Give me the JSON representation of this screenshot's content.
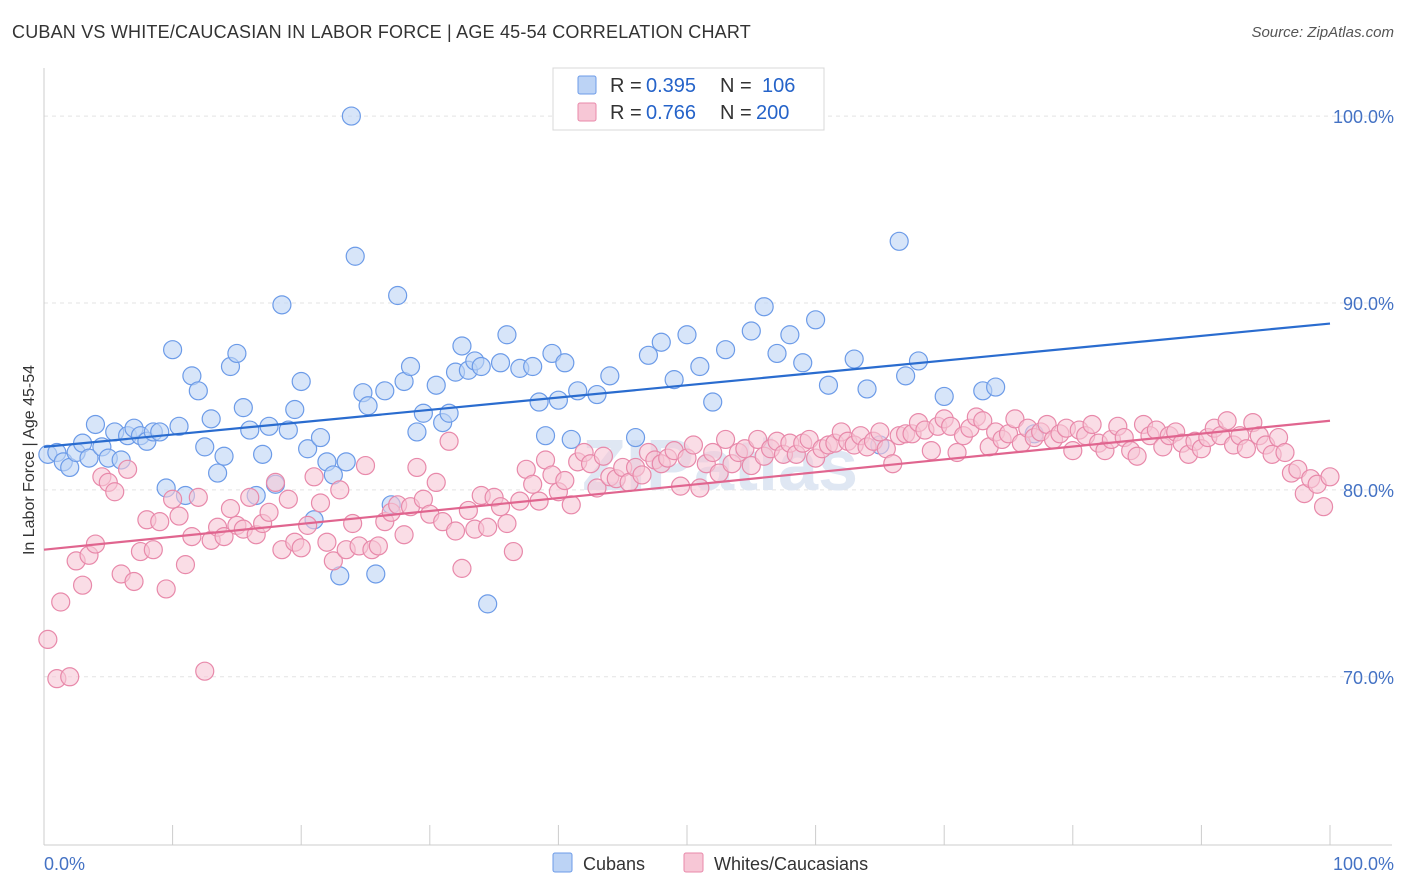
{
  "title": "CUBAN VS WHITE/CAUCASIAN IN LABOR FORCE | AGE 45-54 CORRELATION CHART",
  "source": "Source: ZipAtlas.com",
  "chart_data": {
    "type": "scatter",
    "ylabel": "In Labor Force | Age 45-54",
    "xlim": [
      0,
      100
    ],
    "ylim": [
      61,
      103
    ],
    "x_tick_labels": [
      "0.0%",
      "100.0%"
    ],
    "y_ticks": [
      {
        "value": 100,
        "label": "100.0%"
      },
      {
        "value": 90,
        "label": "90.0%"
      },
      {
        "value": 80,
        "label": "80.0%"
      },
      {
        "value": 70,
        "label": "70.0%"
      }
    ],
    "legend": {
      "placement": "top-center",
      "rows": [
        {
          "r_label": "R =",
          "r_value": "0.395",
          "n_label": "N =",
          "n_value": "106"
        },
        {
          "r_label": "R =",
          "r_value": "0.766",
          "n_label": "N =",
          "n_value": "200"
        }
      ]
    },
    "watermark": "ZIPatlas",
    "series": [
      {
        "name": "Cubans",
        "color": "#6c9be8",
        "fill": "#bcd3f5",
        "line_color": "#2a6ccf",
        "trend": {
          "x": [
            0,
            100
          ],
          "y": [
            82.3,
            88.9
          ]
        },
        "points": [
          [
            0.3,
            81.9
          ],
          [
            1,
            82
          ],
          [
            1.5,
            81.5
          ],
          [
            2,
            81.2
          ],
          [
            2.5,
            82
          ],
          [
            3,
            82.5
          ],
          [
            3.5,
            81.7
          ],
          [
            4,
            83.5
          ],
          [
            4.5,
            82.3
          ],
          [
            5,
            81.7
          ],
          [
            5.5,
            83.1
          ],
          [
            6,
            81.6
          ],
          [
            6.5,
            82.9
          ],
          [
            7,
            83.3
          ],
          [
            7.5,
            82.9
          ],
          [
            8,
            82.6
          ],
          [
            8.5,
            83.1
          ],
          [
            9,
            83.1
          ],
          [
            9.5,
            80.1
          ],
          [
            10,
            87.5
          ],
          [
            10.5,
            83.4
          ],
          [
            11,
            79.7
          ],
          [
            11.5,
            86.1
          ],
          [
            12,
            85.3
          ],
          [
            12.5,
            82.3
          ],
          [
            13,
            83.8
          ],
          [
            13.5,
            80.9
          ],
          [
            14,
            81.8
          ],
          [
            14.5,
            86.6
          ],
          [
            15,
            87.3
          ],
          [
            15.5,
            84.4
          ],
          [
            16,
            83.2
          ],
          [
            16.5,
            79.7
          ],
          [
            17,
            81.9
          ],
          [
            17.5,
            83.4
          ],
          [
            18,
            80.3
          ],
          [
            18.5,
            89.9
          ],
          [
            19,
            83.2
          ],
          [
            19.5,
            84.3
          ],
          [
            20,
            85.8
          ],
          [
            20.5,
            82.2
          ],
          [
            21,
            78.4
          ],
          [
            21.5,
            82.8
          ],
          [
            22,
            81.5
          ],
          [
            22.5,
            80.8
          ],
          [
            23,
            75.4
          ],
          [
            23.5,
            81.5
          ],
          [
            23.9,
            100
          ],
          [
            24.2,
            92.5
          ],
          [
            24.8,
            85.2
          ],
          [
            25.2,
            84.5
          ],
          [
            25.8,
            75.5
          ],
          [
            26.5,
            85.3
          ],
          [
            27,
            79.2
          ],
          [
            27.5,
            90.4
          ],
          [
            28,
            85.8
          ],
          [
            28.5,
            86.6
          ],
          [
            29,
            83.1
          ],
          [
            29.5,
            84.1
          ],
          [
            30.5,
            85.6
          ],
          [
            31,
            83.6
          ],
          [
            31.5,
            84.1
          ],
          [
            32,
            86.3
          ],
          [
            32.5,
            87.7
          ],
          [
            33,
            86.4
          ],
          [
            33.5,
            86.9
          ],
          [
            34,
            86.6
          ],
          [
            34.5,
            73.9
          ],
          [
            35.5,
            86.8
          ],
          [
            36,
            88.3
          ],
          [
            37,
            86.5
          ],
          [
            38,
            86.6
          ],
          [
            38.5,
            84.7
          ],
          [
            39,
            82.9
          ],
          [
            39.5,
            87.3
          ],
          [
            40,
            84.8
          ],
          [
            40.5,
            86.8
          ],
          [
            41,
            82.7
          ],
          [
            41.5,
            85.3
          ],
          [
            43,
            85.1
          ],
          [
            44,
            86.1
          ],
          [
            46,
            82.8
          ],
          [
            47,
            87.2
          ],
          [
            48,
            87.9
          ],
          [
            49,
            85.9
          ],
          [
            50,
            88.3
          ],
          [
            51,
            86.6
          ],
          [
            52,
            84.7
          ],
          [
            53,
            87.5
          ],
          [
            55,
            88.5
          ],
          [
            56,
            89.8
          ],
          [
            57,
            87.3
          ],
          [
            58,
            88.3
          ],
          [
            59,
            86.8
          ],
          [
            60,
            89.1
          ],
          [
            61,
            85.6
          ],
          [
            63,
            87
          ],
          [
            64,
            85.4
          ],
          [
            65,
            82.4
          ],
          [
            66.5,
            93.3
          ],
          [
            67,
            86.1
          ],
          [
            68,
            86.9
          ],
          [
            70,
            85
          ],
          [
            73,
            85.3
          ],
          [
            74,
            85.5
          ],
          [
            77,
            83
          ]
        ]
      },
      {
        "name": "Whites/Caucasians",
        "color": "#e889aa",
        "fill": "#f7c7d6",
        "line_color": "#e0658f",
        "trend": {
          "x": [
            0,
            100
          ],
          "y": [
            76.8,
            83.7
          ]
        },
        "points": [
          [
            0.3,
            72
          ],
          [
            1,
            69.9
          ],
          [
            1.3,
            74
          ],
          [
            2,
            70
          ],
          [
            2.5,
            76.2
          ],
          [
            3,
            74.9
          ],
          [
            3.5,
            76.5
          ],
          [
            4,
            77.1
          ],
          [
            4.5,
            80.7
          ],
          [
            5,
            80.4
          ],
          [
            5.5,
            79.9
          ],
          [
            6,
            75.5
          ],
          [
            6.5,
            81.1
          ],
          [
            7,
            75.1
          ],
          [
            7.5,
            76.7
          ],
          [
            8,
            78.4
          ],
          [
            8.5,
            76.8
          ],
          [
            9,
            78.3
          ],
          [
            9.5,
            74.7
          ],
          [
            10,
            79.5
          ],
          [
            10.5,
            78.6
          ],
          [
            11,
            76
          ],
          [
            11.5,
            77.5
          ],
          [
            12,
            79.6
          ],
          [
            12.5,
            70.3
          ],
          [
            13,
            77.3
          ],
          [
            13.5,
            78
          ],
          [
            14,
            77.5
          ],
          [
            14.5,
            79
          ],
          [
            15,
            78.1
          ],
          [
            15.5,
            77.9
          ],
          [
            16,
            79.6
          ],
          [
            16.5,
            77.6
          ],
          [
            17,
            78.2
          ],
          [
            17.5,
            78.8
          ],
          [
            18,
            80.4
          ],
          [
            18.5,
            76.8
          ],
          [
            19,
            79.5
          ],
          [
            19.5,
            77.2
          ],
          [
            20,
            76.9
          ],
          [
            20.5,
            78.1
          ],
          [
            21,
            80.7
          ],
          [
            21.5,
            79.3
          ],
          [
            22,
            77.2
          ],
          [
            22.5,
            76.2
          ],
          [
            23,
            80
          ],
          [
            23.5,
            76.8
          ],
          [
            24,
            78.2
          ],
          [
            24.5,
            77
          ],
          [
            25,
            81.3
          ],
          [
            25.5,
            76.8
          ],
          [
            26,
            77
          ],
          [
            26.5,
            78.3
          ],
          [
            27,
            78.8
          ],
          [
            27.5,
            79.2
          ],
          [
            28,
            77.6
          ],
          [
            28.5,
            79.1
          ],
          [
            29,
            81.2
          ],
          [
            29.5,
            79.5
          ],
          [
            30,
            78.7
          ],
          [
            30.5,
            80.4
          ],
          [
            31,
            78.3
          ],
          [
            31.5,
            82.6
          ],
          [
            32,
            77.8
          ],
          [
            32.5,
            75.8
          ],
          [
            33,
            78.9
          ],
          [
            33.5,
            77.9
          ],
          [
            34,
            79.7
          ],
          [
            34.5,
            78
          ],
          [
            35,
            79.6
          ],
          [
            35.5,
            79.1
          ],
          [
            36,
            78.2
          ],
          [
            36.5,
            76.7
          ],
          [
            37,
            79.4
          ],
          [
            37.5,
            81.1
          ],
          [
            38,
            80.3
          ],
          [
            38.5,
            79.4
          ],
          [
            39,
            81.6
          ],
          [
            39.5,
            80.8
          ],
          [
            40,
            79.9
          ],
          [
            40.5,
            80.5
          ],
          [
            41,
            79.2
          ],
          [
            41.5,
            81.5
          ],
          [
            42,
            82
          ],
          [
            42.5,
            81.4
          ],
          [
            43,
            80.1
          ],
          [
            43.5,
            81.8
          ],
          [
            44,
            80.7
          ],
          [
            44.5,
            80.6
          ],
          [
            45,
            81.2
          ],
          [
            45.5,
            80.4
          ],
          [
            46,
            81.2
          ],
          [
            46.5,
            80.8
          ],
          [
            47,
            82
          ],
          [
            47.5,
            81.6
          ],
          [
            48,
            81.4
          ],
          [
            48.5,
            81.7
          ],
          [
            49,
            82.1
          ],
          [
            49.5,
            80.2
          ],
          [
            50,
            81.7
          ],
          [
            50.5,
            82.4
          ],
          [
            51,
            80.1
          ],
          [
            51.5,
            81.4
          ],
          [
            52,
            82
          ],
          [
            52.5,
            80.9
          ],
          [
            53,
            82.7
          ],
          [
            53.5,
            81.4
          ],
          [
            54,
            82
          ],
          [
            54.5,
            82.2
          ],
          [
            55,
            81.3
          ],
          [
            55.5,
            82.7
          ],
          [
            56,
            81.8
          ],
          [
            56.5,
            82.2
          ],
          [
            57,
            82.6
          ],
          [
            57.5,
            81.9
          ],
          [
            58,
            82.5
          ],
          [
            58.5,
            81.9
          ],
          [
            59,
            82.5
          ],
          [
            59.5,
            82.7
          ],
          [
            60,
            81.7
          ],
          [
            60.5,
            82.2
          ],
          [
            61,
            82.4
          ],
          [
            61.5,
            82.5
          ],
          [
            62,
            83.1
          ],
          [
            62.5,
            82.6
          ],
          [
            63,
            82.4
          ],
          [
            63.5,
            82.9
          ],
          [
            64,
            82.3
          ],
          [
            64.5,
            82.6
          ],
          [
            65,
            83.1
          ],
          [
            65.5,
            82.2
          ],
          [
            66,
            81.4
          ],
          [
            66.5,
            82.9
          ],
          [
            67,
            83
          ],
          [
            67.5,
            83
          ],
          [
            68,
            83.6
          ],
          [
            68.5,
            83.2
          ],
          [
            69,
            82.1
          ],
          [
            69.5,
            83.4
          ],
          [
            70,
            83.8
          ],
          [
            70.5,
            83.4
          ],
          [
            71,
            82
          ],
          [
            71.5,
            82.9
          ],
          [
            72,
            83.3
          ],
          [
            72.5,
            83.9
          ],
          [
            73,
            83.7
          ],
          [
            73.5,
            82.3
          ],
          [
            74,
            83.1
          ],
          [
            74.5,
            82.7
          ],
          [
            75,
            83
          ],
          [
            75.5,
            83.8
          ],
          [
            76,
            82.5
          ],
          [
            76.5,
            83.3
          ],
          [
            77,
            82.8
          ],
          [
            77.5,
            83.1
          ],
          [
            78,
            83.5
          ],
          [
            78.5,
            82.7
          ],
          [
            79,
            83
          ],
          [
            79.5,
            83.3
          ],
          [
            80,
            82.1
          ],
          [
            80.5,
            83.2
          ],
          [
            81,
            82.9
          ],
          [
            81.5,
            83.5
          ],
          [
            82,
            82.5
          ],
          [
            82.5,
            82.1
          ],
          [
            83,
            82.7
          ],
          [
            83.5,
            83.4
          ],
          [
            84,
            82.8
          ],
          [
            84.5,
            82.1
          ],
          [
            85,
            81.8
          ],
          [
            85.5,
            83.5
          ],
          [
            86,
            82.9
          ],
          [
            86.5,
            83.2
          ],
          [
            87,
            82.3
          ],
          [
            87.5,
            82.9
          ],
          [
            88,
            83.1
          ],
          [
            88.5,
            82.5
          ],
          [
            89,
            81.9
          ],
          [
            89.5,
            82.6
          ],
          [
            90,
            82.2
          ],
          [
            90.5,
            82.8
          ],
          [
            91,
            83.3
          ],
          [
            91.5,
            82.9
          ],
          [
            92,
            83.7
          ],
          [
            92.5,
            82.4
          ],
          [
            93,
            82.9
          ],
          [
            93.5,
            82.2
          ],
          [
            94,
            83.6
          ],
          [
            94.5,
            82.9
          ],
          [
            95,
            82.4
          ],
          [
            95.5,
            81.9
          ],
          [
            96,
            82.8
          ],
          [
            96.5,
            82
          ],
          [
            97,
            80.9
          ],
          [
            97.5,
            81.1
          ],
          [
            98,
            79.8
          ],
          [
            98.5,
            80.6
          ],
          [
            99,
            80.3
          ],
          [
            99.5,
            79.1
          ],
          [
            100,
            80.7
          ]
        ]
      }
    ]
  }
}
